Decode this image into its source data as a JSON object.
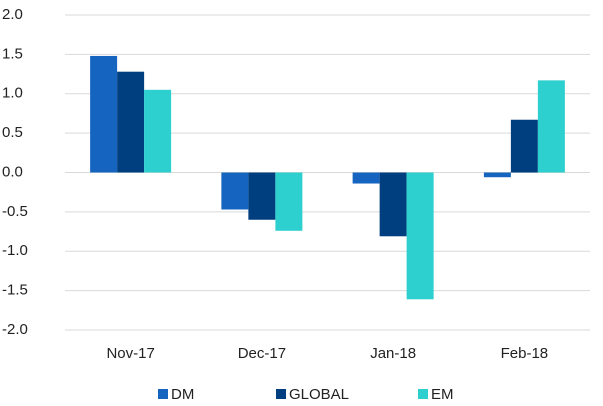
{
  "chart_data": {
    "type": "bar",
    "categories": [
      "Nov-17",
      "Dec-17",
      "Jan-18",
      "Feb-18"
    ],
    "series": [
      {
        "name": "DM",
        "color": "#1565c0",
        "values": [
          1.48,
          -0.47,
          -0.14,
          -0.06
        ]
      },
      {
        "name": "GLOBAL",
        "color": "#003f7f",
        "values": [
          1.28,
          -0.6,
          -0.81,
          0.67
        ]
      },
      {
        "name": "EM",
        "color": "#2ecfcf",
        "values": [
          1.05,
          -0.74,
          -1.61,
          1.17
        ]
      }
    ],
    "ylim": [
      -2,
      2
    ],
    "yticks": [
      {
        "value": -2,
        "label": "-2.0"
      },
      -1.5,
      {
        "value": -1,
        "label": "-1.0"
      },
      -0.5,
      {
        "value": 0,
        "label": "0.0"
      },
      0.5,
      {
        "value": 1,
        "label": "1.0"
      },
      1.5,
      {
        "value": 2,
        "label": "2.0"
      }
    ],
    "grid": true,
    "legend": "bottom"
  }
}
